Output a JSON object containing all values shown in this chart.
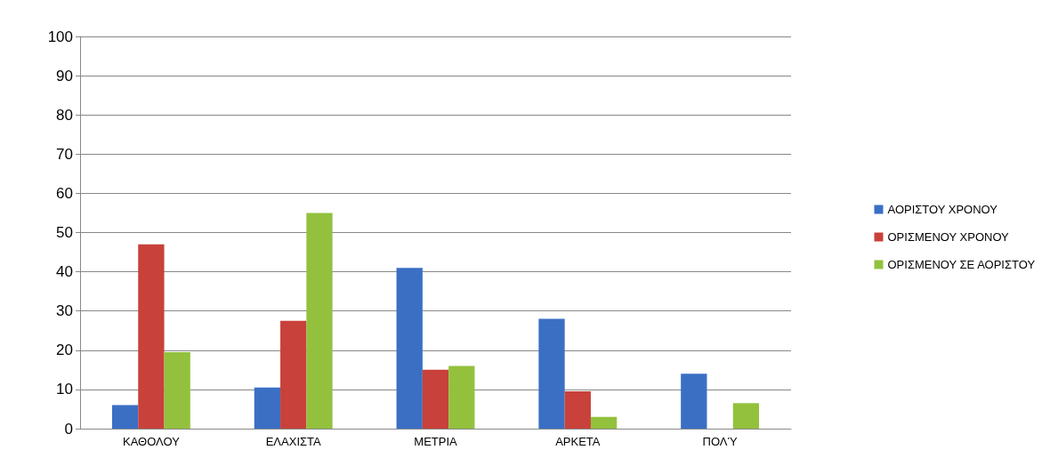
{
  "chart_data": {
    "type": "bar",
    "categories": [
      "ΚΑΘΟΛΟΥ",
      "ΕΛΑΧΙΣΤΑ",
      "ΜΕΤΡΙΑ",
      "ΑΡΚΕΤΑ",
      "ΠΟΛΎ"
    ],
    "series": [
      {
        "name": "ΑΟΡΙΣΤΟΥ ΧΡΟΝΟΥ",
        "color": "#3a6fc4",
        "values": [
          6,
          10.5,
          41,
          28,
          14
        ]
      },
      {
        "name": "ΟΡΙΣΜΕΝΟΥ ΧΡΟΝΟΥ",
        "color": "#c8413a",
        "values": [
          47,
          27.5,
          15,
          9.5,
          0
        ]
      },
      {
        "name": "ΟΡΙΣΜΕΝΟΥ ΣΕ ΑΟΡΙΣΤΟΥ",
        "color": "#93c13d",
        "values": [
          19.5,
          55,
          16,
          3,
          6.5
        ]
      }
    ],
    "ylim": [
      0,
      100
    ],
    "yticks": [
      0,
      10,
      20,
      30,
      40,
      50,
      60,
      70,
      80,
      90,
      100
    ],
    "grid": "y",
    "legend": "right"
  }
}
